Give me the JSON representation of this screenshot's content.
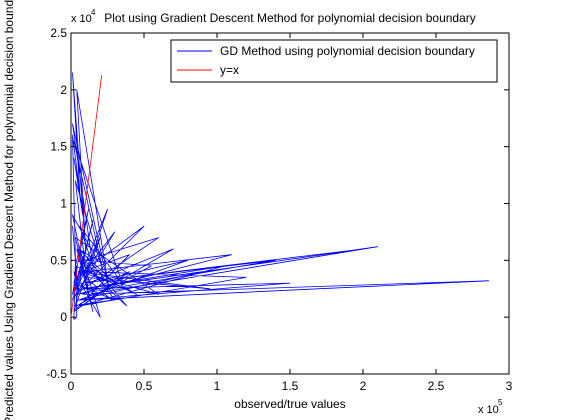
{
  "chart_data": {
    "type": "line",
    "title": "Plot using Gradient Descent Method for polynomial decision boundary",
    "xlabel": "observed/true values",
    "ylabel": "Predicted values Using Gradient Descent Method for polynomial decision boundary",
    "x_scale_label": "x 10",
    "x_scale_exponent": "5",
    "y_scale_label": "x 10",
    "y_scale_exponent": "4",
    "xlim": [
      0,
      3
    ],
    "ylim": [
      -0.5,
      2.5
    ],
    "x_tick_values": [
      0,
      0.5,
      1,
      1.5,
      2,
      2.5,
      3
    ],
    "x_tick_labels": [
      "0",
      "0.5",
      "1",
      "1.5",
      "2",
      "2.5",
      "3"
    ],
    "y_tick_values": [
      -0.5,
      0,
      0.5,
      1,
      1.5,
      2,
      2.5
    ],
    "y_tick_labels": [
      "-0.5",
      "0",
      "0.5",
      "1",
      "1.5",
      "2",
      "2.5"
    ],
    "grid": false,
    "legend_position": "top-right",
    "series": [
      {
        "name": "GD Method using polynomial decision boundary",
        "color": "#0000ff",
        "x": [
          0.02,
          0.05,
          0.01,
          0.1,
          0.03,
          0.2,
          0.04,
          0.15,
          0.01,
          0.3,
          0.06,
          0.25,
          0.02,
          0.4,
          0.08,
          0.5,
          0.03,
          0.6,
          0.1,
          0.55,
          0.04,
          0.7,
          0.12,
          0.8,
          0.05,
          0.9,
          0.08,
          1.05,
          0.06,
          1.2,
          0.1,
          1.1,
          0.04,
          1.4,
          0.07,
          2.0,
          0.12,
          2.1,
          0.09,
          1.5,
          0.05,
          2.86,
          0.08,
          0.4,
          0.02,
          0.3,
          0.05,
          0.18,
          0.01,
          0.12,
          0.03,
          0.22,
          0.02,
          0.35,
          0.06,
          0.15,
          0.01,
          0.26,
          0.04,
          0.1,
          0.01,
          0.06,
          0.02,
          0.08,
          0.01,
          0.04,
          0.02,
          0.03,
          0.01,
          0.05,
          0.02,
          0.2,
          0.06,
          0.38,
          0.05,
          0.45,
          0.03,
          0.12,
          0.02,
          0.3,
          0.04,
          0.15,
          0.03,
          0.6,
          0.05,
          0.95,
          0.1,
          0.28,
          0.02
        ],
        "y": [
          0.3,
          0.5,
          0.2,
          0.6,
          0.1,
          0.7,
          0.25,
          0.85,
          0.15,
          0.75,
          0.35,
          0.95,
          0.05,
          0.55,
          0.4,
          0.8,
          0.2,
          0.7,
          0.5,
          0.45,
          0.1,
          0.6,
          0.3,
          0.5,
          0.15,
          0.4,
          0.25,
          0.45,
          0.1,
          0.35,
          0.4,
          0.55,
          0.2,
          0.5,
          0.3,
          0.6,
          0.2,
          0.62,
          0.25,
          0.3,
          0.15,
          0.32,
          0.2,
          0.4,
          0.05,
          0.3,
          0.6,
          0.5,
          0.9,
          0.2,
          1.2,
          0.4,
          1.55,
          0.3,
          0.8,
          0.45,
          1.7,
          0.25,
          2.0,
          0.6,
          2.15,
          1.1,
          1.4,
          0.9,
          1.6,
          0.0,
          -0.02,
          0.5,
          0.8,
          0.2,
          0.4,
          0.0,
          0.6,
          0.1,
          0.5,
          0.2,
          0.45,
          0.95,
          0.3,
          0.15,
          0.6,
          0.05,
          0.7,
          0.2,
          0.4,
          0.25,
          0.35,
          0.15,
          0.1
        ]
      },
      {
        "name": "y=x",
        "color": "#ff0000",
        "x": [
          0.0,
          0.21
        ],
        "y": [
          0.0,
          2.13
        ]
      }
    ]
  }
}
